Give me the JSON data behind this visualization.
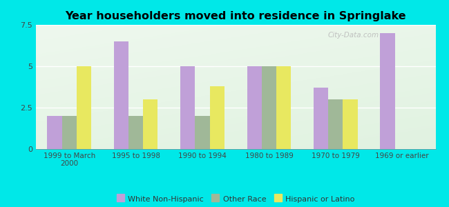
{
  "title": "Year householders moved into residence in Springlake",
  "categories": [
    "1999 to March\n2000",
    "1995 to 1998",
    "1990 to 1994",
    "1980 to 1989",
    "1970 to 1979",
    "1969 or earlier"
  ],
  "series": {
    "White Non-Hispanic": [
      2.0,
      6.5,
      5.0,
      5.0,
      3.7,
      7.0
    ],
    "Other Race": [
      2.0,
      2.0,
      2.0,
      5.0,
      3.0,
      0.0
    ],
    "Hispanic or Latino": [
      5.0,
      3.0,
      3.8,
      5.0,
      3.0,
      0.0
    ]
  },
  "colors": {
    "White Non-Hispanic": "#c0a0d8",
    "Other Race": "#a0b898",
    "Hispanic or Latino": "#e8e860"
  },
  "ylim": [
    0,
    7.5
  ],
  "yticks": [
    0,
    2.5,
    5.0,
    7.5
  ],
  "background_color": "#00e8e8",
  "watermark": "City-Data.com",
  "bar_width": 0.22
}
